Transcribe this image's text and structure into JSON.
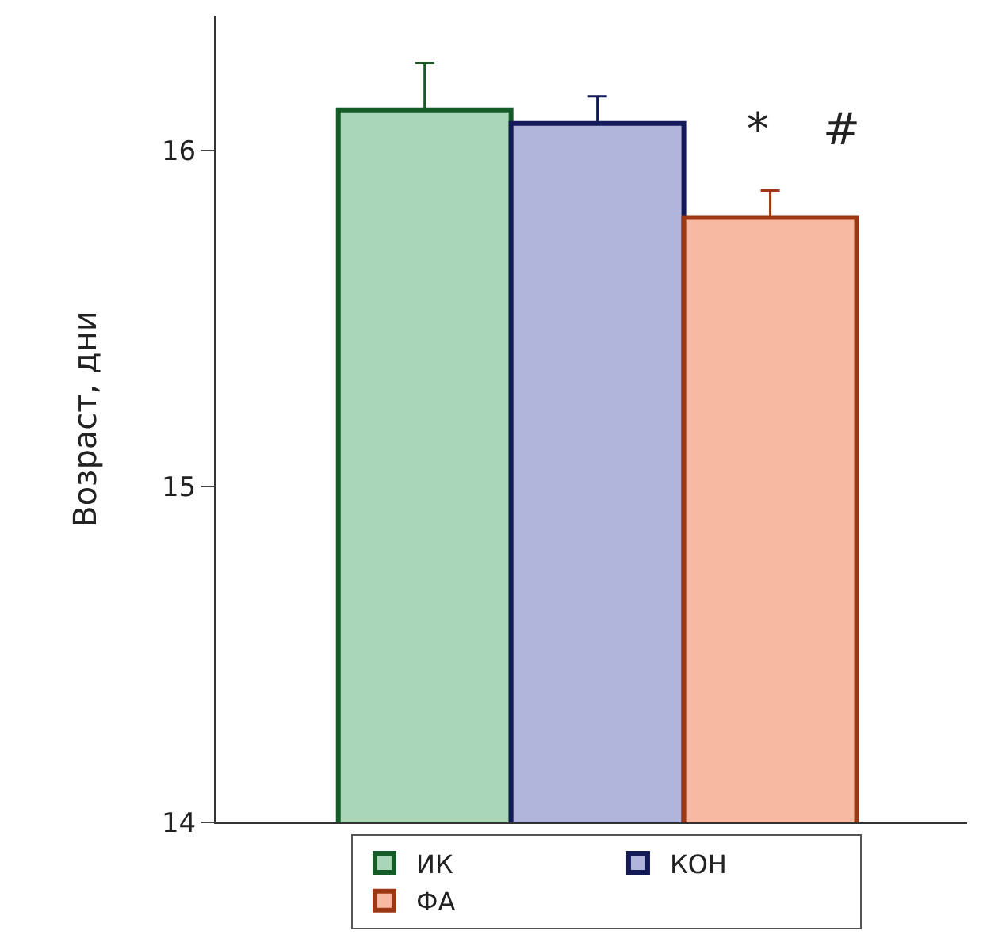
{
  "chart_data": {
    "type": "bar",
    "ylabel": "Возраст, дни",
    "categories": [
      null,
      null,
      null
    ],
    "series": [
      {
        "name": "ИК",
        "color": "#a9d6b6",
        "values": [
          16.12,
          null,
          null
        ],
        "errors": [
          [
            16.12,
            16.26
          ],
          null,
          null
        ]
      },
      {
        "name": "КОН",
        "color": "#b1b5dc",
        "values": [
          null,
          16.08,
          null
        ],
        "errors": [
          null,
          [
            16.08,
            16.16
          ],
          null
        ]
      },
      {
        "name": "ФА",
        "color": "#f8b9a2",
        "values": [
          null,
          null,
          15.8
        ],
        "errors": [
          null,
          null,
          [
            15.8,
            15.88
          ]
        ]
      }
    ],
    "ylim": [
      14,
      16.4
    ],
    "yticks": [
      14,
      15,
      16
    ],
    "legend": "bottom",
    "tick_labels": "y",
    "annotations": [
      "*",
      "#"
    ]
  }
}
